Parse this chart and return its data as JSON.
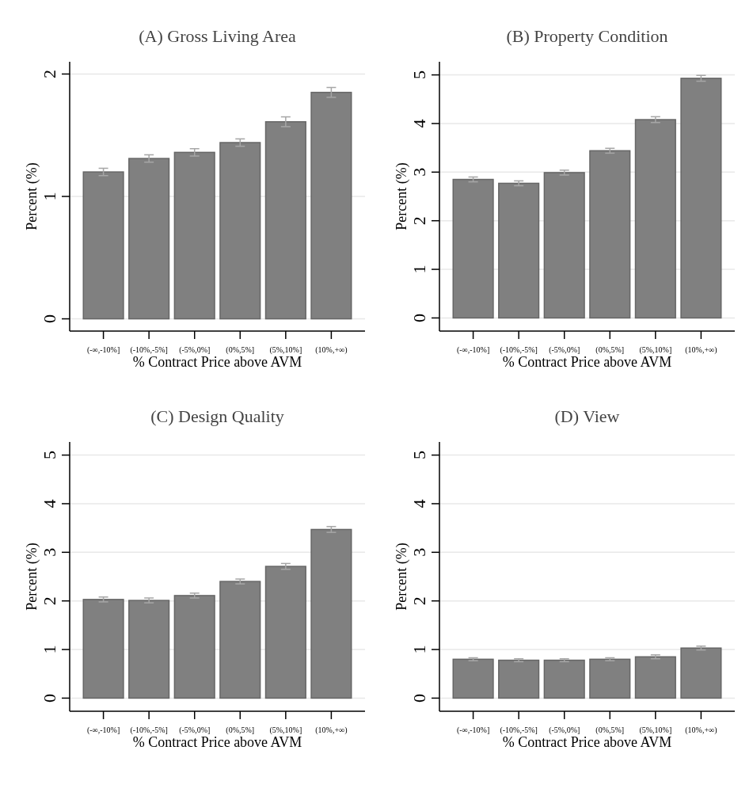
{
  "chart_data": [
    {
      "type": "bar",
      "title": "(A) Gross Living Area",
      "xlabel": "% Contract Price above AVM",
      "ylabel": "Percent (%)",
      "categories": [
        "(-∞,-10%]",
        "(-10%,-5%]",
        "(-5%,0%]",
        "(0%,5%]",
        "(5%,10%]",
        "(10%,+∞)"
      ],
      "values": [
        1.2,
        1.31,
        1.36,
        1.44,
        1.61,
        1.85
      ],
      "errors": [
        0.03,
        0.03,
        0.03,
        0.03,
        0.04,
        0.04
      ],
      "color": "#808080",
      "ylim": [
        -0.1,
        2.1
      ],
      "yticks": [
        0,
        1,
        2
      ],
      "grid": "y"
    },
    {
      "type": "bar",
      "title": "(B) Property Condition",
      "xlabel": "% Contract Price above AVM",
      "ylabel": "Percent (%)",
      "categories": [
        "(-∞,-10%]",
        "(-10%,-5%]",
        "(-5%,0%]",
        "(0%,5%]",
        "(5%,10%]",
        "(10%,+∞)"
      ],
      "values": [
        2.85,
        2.77,
        2.99,
        3.44,
        4.08,
        4.93
      ],
      "errors": [
        0.05,
        0.05,
        0.05,
        0.05,
        0.06,
        0.06
      ],
      "color": "#808080",
      "ylim": [
        -0.27,
        5.27
      ],
      "yticks": [
        0,
        1,
        2,
        3,
        4,
        5
      ],
      "grid": "y"
    },
    {
      "type": "bar",
      "title": "(C) Design Quality",
      "xlabel": "% Contract Price above AVM",
      "ylabel": "Percent (%)",
      "categories": [
        "(-∞,-10%]",
        "(-10%,-5%]",
        "(-5%,0%]",
        "(0%,5%]",
        "(5%,10%]",
        "(10%,+∞)"
      ],
      "values": [
        2.03,
        2.01,
        2.11,
        2.4,
        2.71,
        3.47
      ],
      "errors": [
        0.05,
        0.05,
        0.05,
        0.05,
        0.06,
        0.06
      ],
      "color": "#808080",
      "ylim": [
        -0.27,
        5.27
      ],
      "yticks": [
        0,
        1,
        2,
        3,
        4,
        5
      ],
      "grid": "y"
    },
    {
      "type": "bar",
      "title": "(D) View",
      "xlabel": "% Contract Price above AVM",
      "ylabel": "Percent (%)",
      "categories": [
        "(-∞,-10%]",
        "(-10%,-5%]",
        "(-5%,0%]",
        "(0%,5%]",
        "(5%,10%]",
        "(10%,+∞)"
      ],
      "values": [
        0.8,
        0.78,
        0.78,
        0.8,
        0.85,
        1.03
      ],
      "errors": [
        0.03,
        0.03,
        0.03,
        0.03,
        0.04,
        0.04
      ],
      "color": "#808080",
      "ylim": [
        -0.27,
        5.27
      ],
      "yticks": [
        0,
        1,
        2,
        3,
        4,
        5
      ],
      "grid": "y"
    }
  ]
}
